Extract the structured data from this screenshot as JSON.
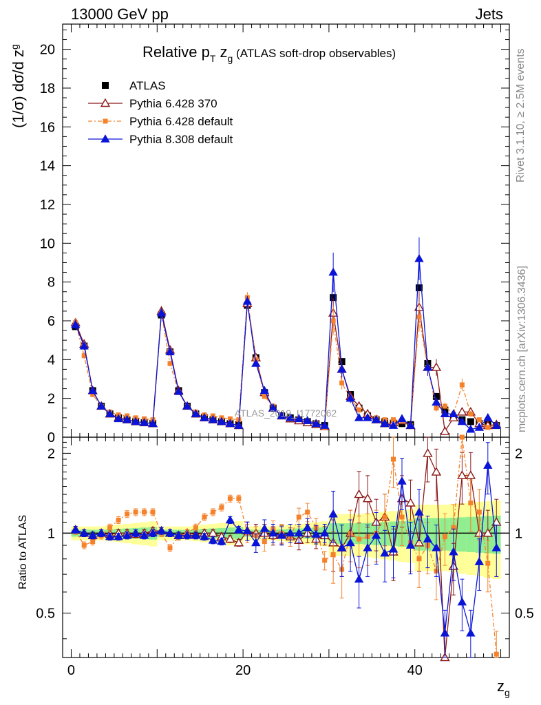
{
  "header": {
    "energy": "13000 GeV pp",
    "process": "Jets"
  },
  "plot_title": {
    "main": "Relative p",
    "sub_T": "T",
    "main2": " z",
    "sub_g": "g",
    "suffix": " (ATLAS soft-drop observables)"
  },
  "y_axis_label": {
    "pre": "(1/σ) dσ/d z",
    "sub": "g"
  },
  "ratio_axis_label": "Ratio to ATLAS",
  "x_axis_label": {
    "main": "z",
    "sub": "g"
  },
  "side_texts": {
    "rivet": "Rivet 3.1.10, ≥ 2.5M events",
    "mcplots": "mcplots.cern.ch [arXiv:1306.3436]"
  },
  "watermark": "ATLAS_2019_I1772062",
  "colors": {
    "atlas": "#000000",
    "p6_370": "#8b1a1a",
    "p6_default": "#f5822a",
    "p8": "#0a14d6",
    "band_green": "#90ee90",
    "band_yellow": "#ffff99"
  },
  "chart_data": {
    "type": "line",
    "title": "Relative pT zg (ATLAS soft-drop observables)",
    "xlabel": "zg",
    "ylabel": "(1/σ) dσ/d zg",
    "xlim": [
      -1,
      51
    ],
    "ylim_main": [
      0,
      21.3
    ],
    "ylim_ratio": [
      0.34,
      2.3
    ],
    "x_ticks": [
      0,
      20,
      40
    ],
    "y_ticks_main": [
      0,
      2,
      4,
      6,
      8,
      10,
      12,
      14,
      16,
      18,
      20
    ],
    "y_ticks_ratio": [
      0.5,
      1,
      2
    ],
    "legend": [
      {
        "name": "ATLAS",
        "marker": "square-filled"
      },
      {
        "name": "Pythia 6.428 370",
        "marker": "triangle-open"
      },
      {
        "name": "Pythia 6.428 default",
        "marker": "square-small"
      },
      {
        "name": "Pythia 8.308 default",
        "marker": "triangle-filled"
      }
    ],
    "x": [
      0.5,
      1.5,
      2.5,
      3.5,
      4.5,
      5.5,
      6.5,
      7.5,
      8.5,
      9.5,
      10.5,
      11.5,
      12.5,
      13.5,
      14.5,
      15.5,
      16.5,
      17.5,
      18.5,
      19.5,
      20.5,
      21.5,
      22.5,
      23.5,
      24.5,
      25.5,
      26.5,
      27.5,
      28.5,
      29.5,
      30.5,
      31.5,
      32.5,
      33.5,
      34.5,
      35.5,
      36.5,
      37.5,
      38.5,
      39.5,
      40.5,
      41.5,
      42.5,
      43.5,
      44.5,
      45.5,
      46.5,
      47.5,
      48.5,
      49.5
    ],
    "series": [
      {
        "name": "ATLAS",
        "values": [
          5.7,
          4.7,
          2.4,
          1.6,
          1.2,
          1.0,
          0.9,
          0.8,
          0.75,
          0.7,
          6.3,
          4.4,
          2.4,
          1.6,
          1.2,
          1.0,
          0.9,
          0.8,
          0.7,
          0.65,
          6.8,
          4.1,
          2.3,
          1.5,
          1.1,
          1.0,
          0.9,
          0.8,
          0.7,
          0.6,
          7.2,
          3.9,
          2.2,
          1.5,
          1.1,
          0.9,
          0.8,
          0.7,
          0.7,
          0.65,
          7.7,
          3.8,
          2.1,
          1.4,
          1.0,
          0.9,
          0.8,
          0.7,
          0.65,
          0.6
        ]
      },
      {
        "name": "Pythia 6.428 370",
        "values": [
          5.9,
          4.8,
          2.4,
          1.6,
          1.2,
          1.0,
          0.9,
          0.8,
          0.75,
          0.7,
          6.5,
          4.5,
          2.4,
          1.6,
          1.2,
          1.0,
          0.9,
          0.8,
          0.7,
          0.6,
          6.9,
          4.1,
          2.3,
          1.5,
          1.1,
          0.95,
          0.85,
          0.75,
          0.65,
          0.55,
          6.4,
          3.5,
          2.1,
          1.6,
          1.2,
          0.9,
          0.7,
          0.75,
          0.85,
          0.6,
          6.7,
          3.6,
          3.6,
          0.3,
          1.0,
          1.3,
          1.3,
          0.7,
          0.6,
          0.65
        ]
      },
      {
        "name": "Pythia 6.428 default",
        "values": [
          5.9,
          4.2,
          2.2,
          1.6,
          1.3,
          1.15,
          1.1,
          1.0,
          0.95,
          0.9,
          6.4,
          3.8,
          2.3,
          1.6,
          1.3,
          1.15,
          1.1,
          1.0,
          0.95,
          0.9,
          7.2,
          4.0,
          2.1,
          1.6,
          1.1,
          0.95,
          0.95,
          0.8,
          0.75,
          0.5,
          6.0,
          2.8,
          2.0,
          1.4,
          1.0,
          1.0,
          0.9,
          0.9,
          0.85,
          0.6,
          6.2,
          3.6,
          1.5,
          1.6,
          1.2,
          2.7,
          1.2,
          0.9,
          0.5,
          0.6
        ]
      },
      {
        "name": "Pythia 8.308 default",
        "values": [
          5.8,
          4.7,
          2.4,
          1.6,
          1.2,
          0.95,
          0.9,
          0.8,
          0.75,
          0.7,
          6.4,
          4.4,
          2.35,
          1.6,
          1.2,
          1.0,
          0.9,
          0.8,
          0.7,
          0.6,
          7.0,
          3.8,
          2.4,
          1.5,
          1.1,
          1.0,
          0.95,
          0.85,
          0.7,
          0.6,
          8.5,
          3.5,
          2.0,
          1.0,
          1.0,
          0.9,
          0.7,
          0.6,
          0.95,
          0.6,
          9.2,
          3.6,
          1.8,
          1.2,
          1.2,
          0.8,
          0.4,
          0.5,
          1.0,
          0.6
        ]
      }
    ],
    "ratio_series": [
      {
        "name": "Pythia 6.428 370",
        "values": [
          1.03,
          1.0,
          0.98,
          1.0,
          0.99,
          1.0,
          1.0,
          0.99,
          1.0,
          1.02,
          1.02,
          1.0,
          0.98,
          1.0,
          0.99,
          1.0,
          1.0,
          0.97,
          0.95,
          0.92,
          1.02,
          1.0,
          1.0,
          0.98,
          0.99,
          0.97,
          0.94,
          1.0,
          0.95,
          0.98,
          0.92,
          0.88,
          1.0,
          1.4,
          1.35,
          1.1,
          1.15,
          0.85,
          1.35,
          1.3,
          0.92,
          2.0,
          1.7,
          0.25,
          0.75,
          1.65,
          1.65,
          1.0,
          1.0,
          1.1
        ]
      },
      {
        "name": "Pythia 6.428 default",
        "values": [
          1.02,
          0.9,
          0.93,
          0.98,
          1.05,
          1.12,
          1.18,
          1.2,
          1.2,
          1.2,
          1.0,
          0.88,
          0.97,
          1.0,
          1.05,
          1.15,
          1.2,
          1.25,
          1.35,
          1.35,
          1.0,
          0.98,
          0.93,
          1.03,
          1.0,
          0.97,
          1.15,
          1.2,
          1.05,
          0.79,
          0.83,
          0.73,
          1.0,
          0.95,
          0.97,
          1.0,
          1.15,
          1.9,
          1.15,
          0.92,
          0.8,
          0.9,
          0.72,
          0.97,
          1.05,
          2.5,
          1.3,
          1.2,
          0.77,
          0.35
        ]
      },
      {
        "name": "Pythia 8.308 default",
        "values": [
          1.03,
          1.0,
          0.98,
          1.0,
          0.97,
          0.97,
          0.98,
          1.0,
          0.98,
          1.0,
          1.02,
          1.0,
          0.98,
          0.98,
          0.98,
          0.97,
          0.94,
          0.93,
          1.12,
          1.03,
          1.02,
          0.92,
          1.04,
          1.0,
          0.98,
          1.0,
          1.0,
          1.05,
          0.99,
          1.0,
          1.18,
          0.88,
          0.92,
          0.67,
          0.88,
          0.98,
          0.84,
          0.87,
          1.57,
          0.9,
          1.2,
          0.95,
          0.88,
          0.42,
          0.85,
          0.55,
          0.42,
          0.78,
          1.8,
          0.88
        ]
      }
    ]
  }
}
